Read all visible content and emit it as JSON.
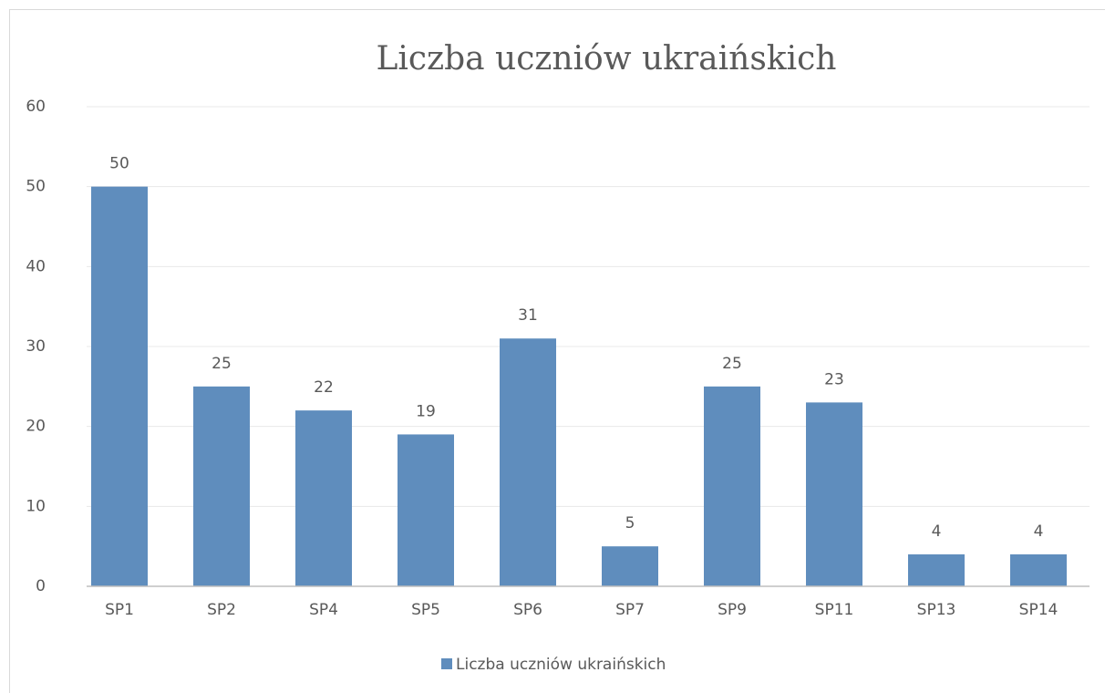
{
  "chart_data": {
    "type": "bar",
    "title": "Liczba uczniów ukraińskich",
    "categories": [
      "SP1",
      "SP2",
      "SP4",
      "SP5",
      "SP6",
      "SP7",
      "SP9",
      "SP11",
      "SP13",
      "SP14"
    ],
    "series": [
      {
        "name": "Liczba uczniów ukraińskich",
        "color": "#5f8dbd",
        "values": [
          50,
          25,
          22,
          19,
          31,
          5,
          25,
          23,
          4,
          4
        ]
      }
    ],
    "ylim": [
      0,
      60
    ],
    "yticks": [
      0,
      10,
      20,
      30,
      40,
      50,
      60
    ],
    "grid": true,
    "legend": "bottom"
  }
}
